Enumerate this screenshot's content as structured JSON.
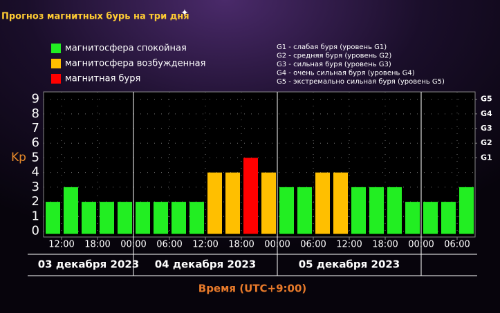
{
  "chart_data": {
    "type": "bar",
    "title": "Прогноз магнитных бурь на три дня",
    "ylabel": "Kp",
    "xlabel": "Время (UTC+9:00)",
    "legend": [
      {
        "name": "магнитосфера спокойная",
        "color": "#22ee22"
      },
      {
        "name": "магнитосфера возбужденная",
        "color": "#ffbf00"
      },
      {
        "name": "магнитная буря",
        "color": "#ff0000"
      }
    ],
    "storm_levels": [
      "G1 - слабая буря (уровень G1)",
      "G2 - средняя буря (уровень G2)",
      "G3 - сильная буря (уровень G3)",
      "G4 - очень сильная буря (уровень G4)",
      "G5 - экстремально сильная буря (уровень G5)"
    ],
    "values": [
      2,
      3,
      2,
      2,
      2,
      2,
      2,
      2,
      2,
      4,
      4,
      5,
      4,
      3,
      3,
      4,
      4,
      3,
      3,
      3,
      2,
      2,
      2,
      3
    ],
    "bar_colors": [
      "#22ee22",
      "#22ee22",
      "#22ee22",
      "#22ee22",
      "#22ee22",
      "#22ee22",
      "#22ee22",
      "#22ee22",
      "#22ee22",
      "#ffbf00",
      "#ffbf00",
      "#ff0000",
      "#ffbf00",
      "#22ee22",
      "#22ee22",
      "#ffbf00",
      "#ffbf00",
      "#22ee22",
      "#22ee22",
      "#22ee22",
      "#22ee22",
      "#22ee22",
      "#22ee22",
      "#22ee22"
    ],
    "bar_hours": 3,
    "xlim": [
      0,
      72
    ],
    "xticks": [
      {
        "value": 3,
        "label": "12:00"
      },
      {
        "value": 9,
        "label": "18:00"
      },
      {
        "value": 15,
        "label": "00:00"
      },
      {
        "value": 21,
        "label": "06:00"
      },
      {
        "value": 27,
        "label": "12:00"
      },
      {
        "value": 33,
        "label": "18:00"
      },
      {
        "value": 39,
        "label": "00:00"
      },
      {
        "value": 45,
        "label": "06:00"
      },
      {
        "value": 51,
        "label": "12:00"
      },
      {
        "value": 57,
        "label": "18:00"
      },
      {
        "value": 63,
        "label": "00:00"
      },
      {
        "value": 69,
        "label": "06:00"
      }
    ],
    "days": [
      {
        "label": "03 декабря 2023",
        "start": 0,
        "end": 15
      },
      {
        "label": "04 декабря 2023",
        "start": 15,
        "end": 39
      },
      {
        "label": "05 декабря 2023",
        "start": 39,
        "end": 63
      }
    ],
    "ylim": [
      -0.4,
      9.5
    ],
    "yticks": [
      0,
      1,
      2,
      3,
      4,
      5,
      6,
      7,
      8,
      9
    ],
    "y2lim": [
      -0.4,
      9.5
    ],
    "y2ticks": [
      {
        "value": 5,
        "label": "G1"
      },
      {
        "value": 6,
        "label": "G2"
      },
      {
        "value": 7,
        "label": "G3"
      },
      {
        "value": 8,
        "label": "G4"
      },
      {
        "value": 9,
        "label": "G5"
      }
    ],
    "grid": true
  }
}
